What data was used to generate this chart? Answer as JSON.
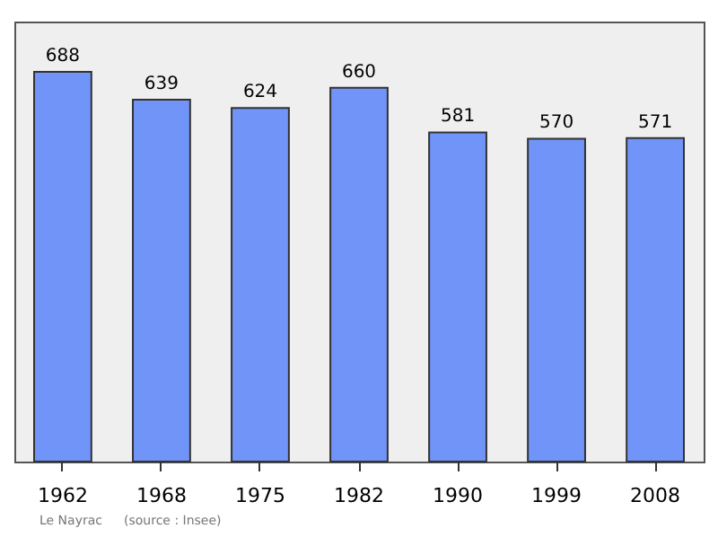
{
  "chart_data": {
    "type": "bar",
    "categories": [
      "1962",
      "1968",
      "1975",
      "1982",
      "1990",
      "1999",
      "2008"
    ],
    "values": [
      688,
      639,
      624,
      660,
      581,
      570,
      571
    ],
    "color": "#7094f7",
    "data_labels": true,
    "annotations": [
      "Le Nayrac",
      "(source : Insee)"
    ]
  }
}
